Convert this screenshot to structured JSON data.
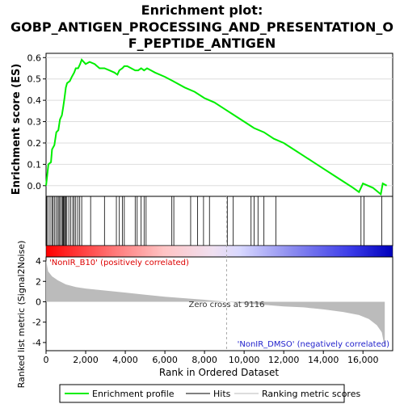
{
  "chart_data": {
    "type": "line",
    "title_lines": [
      "Enrichment plot:",
      "GOBP_ANTIGEN_PROCESSING_AND_PRESENTATION_O",
      "F_PEPTIDE_ANTIGEN"
    ],
    "xlabel": "Rank in Ordered Dataset",
    "top_ylabel": "Enrichment score (ES)",
    "bottom_ylabel": "Ranked list metric (Signal2Noise)",
    "xlim": [
      0,
      17500
    ],
    "x_ticks": [
      0,
      2000,
      4000,
      6000,
      8000,
      10000,
      12000,
      14000,
      16000
    ],
    "x_tick_labels": [
      "0",
      "2,000",
      "4,000",
      "6,000",
      "8,000",
      "10,000",
      "12,000",
      "14,000",
      "16,000"
    ],
    "es_ylim": [
      -0.05,
      0.62
    ],
    "es_ticks": [
      0.0,
      0.1,
      0.2,
      0.3,
      0.4,
      0.5,
      0.6
    ],
    "es_tick_labels": [
      "0.0",
      "0.1",
      "0.2",
      "0.3",
      "0.4",
      "0.5",
      "0.6"
    ],
    "metric_ylim": [
      -4.8,
      4.4
    ],
    "metric_ticks": [
      -4,
      -2,
      0,
      2,
      4
    ],
    "metric_tick_labels": [
      "-4",
      "-2",
      "0",
      "2",
      "4"
    ],
    "es_curve": [
      [
        0,
        0
      ],
      [
        50,
        0.04
      ],
      [
        120,
        0.1
      ],
      [
        250,
        0.11
      ],
      [
        300,
        0.17
      ],
      [
        420,
        0.19
      ],
      [
        520,
        0.25
      ],
      [
        620,
        0.26
      ],
      [
        700,
        0.31
      ],
      [
        800,
        0.33
      ],
      [
        870,
        0.37
      ],
      [
        930,
        0.41
      ],
      [
        1000,
        0.46
      ],
      [
        1060,
        0.48
      ],
      [
        1200,
        0.49
      ],
      [
        1300,
        0.51
      ],
      [
        1420,
        0.53
      ],
      [
        1500,
        0.55
      ],
      [
        1620,
        0.55
      ],
      [
        1720,
        0.57
      ],
      [
        1800,
        0.59
      ],
      [
        2000,
        0.57
      ],
      [
        2200,
        0.58
      ],
      [
        2450,
        0.57
      ],
      [
        2700,
        0.55
      ],
      [
        2950,
        0.55
      ],
      [
        3200,
        0.54
      ],
      [
        3450,
        0.53
      ],
      [
        3600,
        0.52
      ],
      [
        3700,
        0.54
      ],
      [
        3850,
        0.55
      ],
      [
        3950,
        0.56
      ],
      [
        4100,
        0.56
      ],
      [
        4300,
        0.55
      ],
      [
        4500,
        0.54
      ],
      [
        4650,
        0.54
      ],
      [
        4800,
        0.55
      ],
      [
        4950,
        0.54
      ],
      [
        5100,
        0.55
      ],
      [
        5300,
        0.54
      ],
      [
        5500,
        0.53
      ],
      [
        6000,
        0.51
      ],
      [
        6400,
        0.49
      ],
      [
        7000,
        0.46
      ],
      [
        7500,
        0.44
      ],
      [
        8000,
        0.41
      ],
      [
        8500,
        0.39
      ],
      [
        9000,
        0.36
      ],
      [
        9500,
        0.33
      ],
      [
        10000,
        0.3
      ],
      [
        10500,
        0.27
      ],
      [
        11000,
        0.25
      ],
      [
        11500,
        0.22
      ],
      [
        12000,
        0.2
      ],
      [
        12500,
        0.17
      ],
      [
        13000,
        0.14
      ],
      [
        13500,
        0.11
      ],
      [
        14000,
        0.08
      ],
      [
        14500,
        0.05
      ],
      [
        15000,
        0.02
      ],
      [
        15500,
        -0.01
      ],
      [
        15800,
        -0.03
      ],
      [
        16000,
        0.01
      ],
      [
        16500,
        -0.01
      ],
      [
        16900,
        -0.04
      ],
      [
        17000,
        0.01
      ],
      [
        17200,
        0.0
      ]
    ],
    "hits": [
      30,
      90,
      200,
      290,
      350,
      420,
      500,
      580,
      650,
      700,
      780,
      830,
      870,
      900,
      950,
      990,
      1050,
      1150,
      1250,
      1350,
      1420,
      1500,
      1600,
      1700,
      1800,
      2250,
      2950,
      3550,
      3700,
      3850,
      3950,
      4500,
      4600,
      4800,
      4950,
      5050,
      6350,
      6450,
      7300,
      7650,
      7950,
      8250,
      9150,
      9450,
      10350,
      10500,
      10700,
      11000,
      11600,
      15900,
      16050,
      16950
    ],
    "zero_cross": 9116,
    "zero_cross_label": "Zero cross at 9116",
    "pos_label": "'NonIR_B10' (positively correlated)",
    "neg_label": "'NonIR_DMSO' (negatively correlated)",
    "metric_curve": [
      [
        0,
        4.1
      ],
      [
        100,
        3.0
      ],
      [
        300,
        2.5
      ],
      [
        600,
        2.1
      ],
      [
        1000,
        1.7
      ],
      [
        1500,
        1.45
      ],
      [
        2000,
        1.3
      ],
      [
        3000,
        1.1
      ],
      [
        4000,
        0.9
      ],
      [
        5000,
        0.7
      ],
      [
        6000,
        0.5
      ],
      [
        7000,
        0.35
      ],
      [
        8000,
        0.2
      ],
      [
        9116,
        0
      ],
      [
        10000,
        -0.15
      ],
      [
        11000,
        -0.3
      ],
      [
        12000,
        -0.45
      ],
      [
        13000,
        -0.55
      ],
      [
        14000,
        -0.75
      ],
      [
        15000,
        -1.0
      ],
      [
        15800,
        -1.3
      ],
      [
        16300,
        -1.7
      ],
      [
        16700,
        -2.3
      ],
      [
        16950,
        -3.0
      ],
      [
        17100,
        -4.5
      ]
    ],
    "legend": [
      "Enrichment profile",
      "Hits",
      "Ranking metric scores"
    ],
    "colors": {
      "es_line": "#00ee00",
      "hit": "#000000",
      "metric_fill": "#bbbbbb",
      "zero_line": "#aaaaaa",
      "pos_label": "#dd0000",
      "neg_label": "#2222cc",
      "bar_gradient": [
        "#ff0000",
        "#ff7a7a",
        "#ffc4c4",
        "#f0e0f0",
        "#d8d8ff",
        "#9090f0",
        "#3a3ae8",
        "#0000bb"
      ]
    }
  }
}
